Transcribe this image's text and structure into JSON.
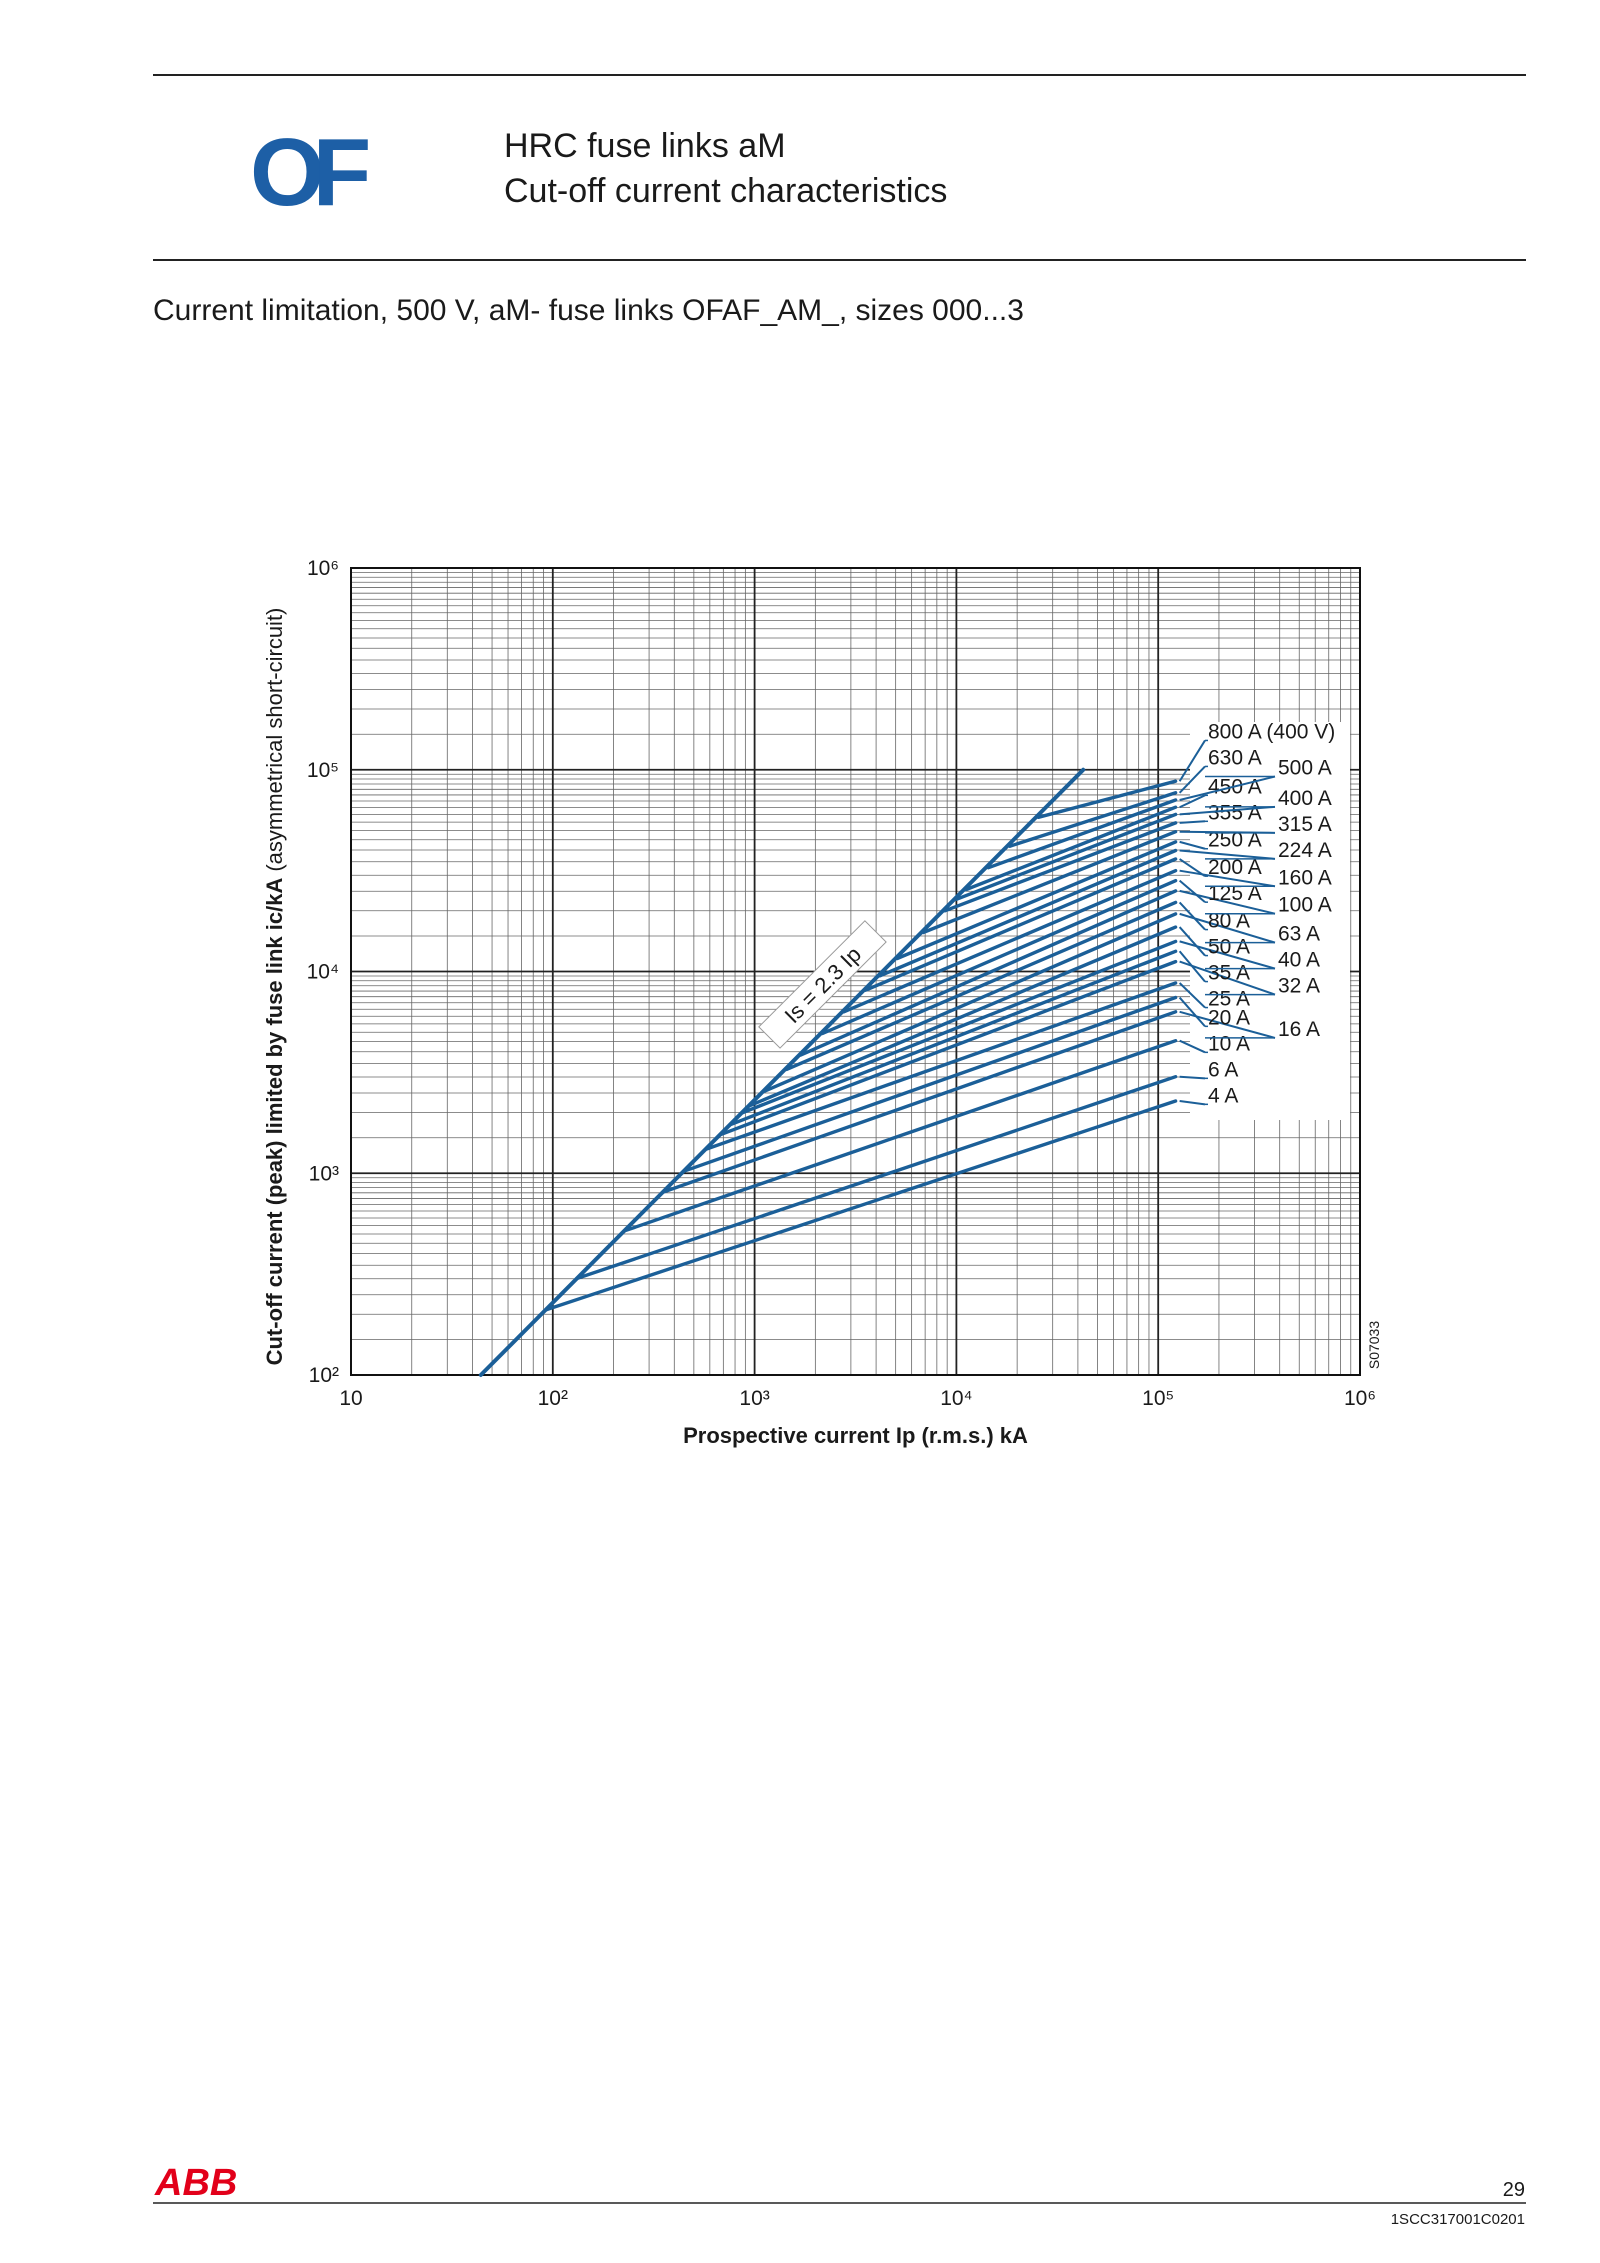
{
  "header": {
    "logo": "OF",
    "title_line1": "HRC fuse links aM",
    "title_line2": "Cut-off current characteristics"
  },
  "subtitle": "Current limitation, 500 V, aM- fuse links OFAF_AM_, sizes 000...3",
  "chart_data": {
    "type": "line",
    "log_x": true,
    "log_y": true,
    "grid": true,
    "minor_grid": true,
    "color": "#1b5f98",
    "xlabel": "Prospective current Ip (r.m.s.) kA",
    "ylabel": "Cut-off current (peak) limited by fuse link ic/kA",
    "ylabel_note": "(asymmetrical short-circuit)",
    "code": "S07033",
    "xlim": [
      10,
      1000000
    ],
    "ylim": [
      100,
      1000000
    ],
    "xticks": [
      10,
      {
        "value": 100,
        "label": "10²"
      },
      {
        "value": 1000,
        "label": "10³"
      },
      {
        "value": 10000,
        "label": "10⁴"
      },
      {
        "value": 100000,
        "label": "10⁵"
      },
      {
        "value": 1000000,
        "label": "10⁶"
      }
    ],
    "yticks": [
      {
        "value": 100,
        "label": "10²"
      },
      {
        "value": 1000,
        "label": "10³"
      },
      {
        "value": 10000,
        "label": "10⁴"
      },
      {
        "value": 100000,
        "label": "10⁵"
      },
      {
        "value": 1000000,
        "label": "10⁶"
      }
    ],
    "envelope": {
      "name": "Is = 2.3 Ip",
      "x": [
        44,
        42500
      ],
      "values": [
        100,
        100000
      ]
    },
    "series": [
      {
        "name": "4 A",
        "x": [
          92,
          122000
        ],
        "values": [
          210,
          2280
        ]
      },
      {
        "name": "6 A",
        "x": [
          132,
          122000
        ],
        "values": [
          301,
          3010
        ]
      },
      {
        "name": "10 A",
        "x": [
          228,
          122000
        ],
        "values": [
          519,
          4540
        ]
      },
      {
        "name": "16 A",
        "x": [
          355,
          122000
        ],
        "values": [
          808,
          6310
        ]
      },
      {
        "name": "20 A",
        "x": [
          454,
          122000
        ],
        "values": [
          1030,
          7430
        ]
      },
      {
        "name": "25 A",
        "x": [
          581,
          122000
        ],
        "values": [
          1320,
          8770
        ]
      },
      {
        "name": "32 A",
        "x": [
          685,
          122000
        ],
        "values": [
          1560,
          11200
        ]
      },
      {
        "name": "35 A",
        "x": [
          769,
          122000
        ],
        "values": [
          1750,
          12600
        ]
      },
      {
        "name": "40 A",
        "x": [
          877,
          122000
        ],
        "values": [
          2000,
          14100
        ]
      },
      {
        "name": "50 A",
        "x": [
          952,
          122000
        ],
        "values": [
          2170,
          16600
        ]
      },
      {
        "name": "63 A",
        "x": [
          1120,
          122000
        ],
        "values": [
          2550,
          19300
        ]
      },
      {
        "name": "80 A",
        "x": [
          1440,
          122000
        ],
        "values": [
          3270,
          22000
        ]
      },
      {
        "name": "100 A",
        "x": [
          1690,
          122000
        ],
        "values": [
          3850,
          25100
        ]
      },
      {
        "name": "125 A",
        "x": [
          2170,
          122000
        ],
        "values": [
          4930,
          28200
        ]
      },
      {
        "name": "160 A",
        "x": [
          2770,
          122000
        ],
        "values": [
          6310,
          31600
        ]
      },
      {
        "name": "200 A",
        "x": [
          3550,
          122000
        ],
        "values": [
          8080,
          36100
        ]
      },
      {
        "name": "224 A",
        "x": [
          4180,
          122000
        ],
        "values": [
          9520,
          39800
        ]
      },
      {
        "name": "250 A",
        "x": [
          5090,
          122000
        ],
        "values": [
          11600,
          43900
        ]
      },
      {
        "name": "315 A",
        "x": [
          6850,
          122000
        ],
        "values": [
          15600,
          49300
        ]
      },
      {
        "name": "355 A",
        "x": [
          8770,
          122000
        ],
        "values": [
          20000,
          54500
        ]
      },
      {
        "name": "400 A",
        "x": [
          10000,
          122000
        ],
        "values": [
          22800,
          60100
        ]
      },
      {
        "name": "450 A",
        "x": [
          11200,
          122000
        ],
        "values": [
          25500,
          65200
        ]
      },
      {
        "name": "500 A",
        "x": [
          14400,
          122000
        ],
        "values": [
          32700,
          70800
        ]
      },
      {
        "name": "630 A",
        "x": [
          18400,
          122000
        ],
        "values": [
          41800,
          76900
        ]
      },
      {
        "name": "800 A (400 V)",
        "x": [
          25500,
          122000
        ],
        "values": [
          58100,
          87700
        ]
      }
    ]
  },
  "footer": {
    "logo": "ABB",
    "page": "29",
    "doc_code": "1SCC317001C0201"
  }
}
